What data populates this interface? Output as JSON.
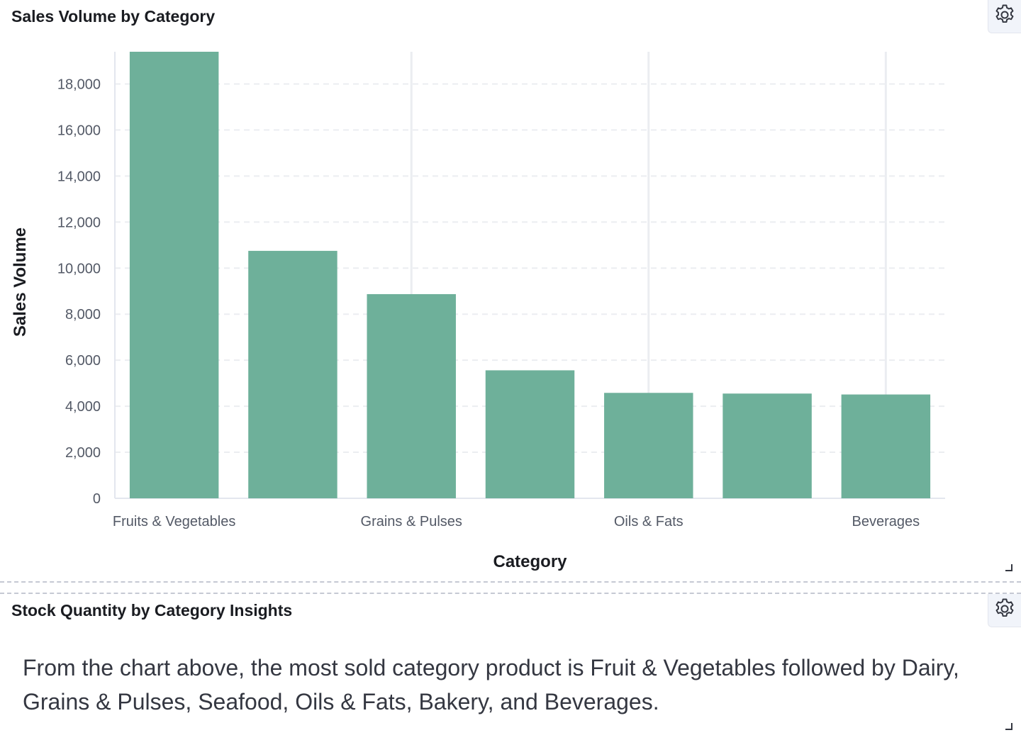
{
  "chart_panel": {
    "title": "Sales Volume by Category",
    "settings_icon": "gear-icon"
  },
  "text_panel": {
    "title": "Stock Quantity by Category Insights",
    "settings_icon": "gear-icon",
    "body": "From the chart above, the most sold category product is Fruit & Vegetables followed by Dairy, Grains & Pulses, Seafood, Oils & Fats, Bakery, and Beverages."
  },
  "chart_data": {
    "type": "bar",
    "title": "Sales Volume by Category",
    "xlabel": "Category",
    "ylabel": "Sales Volume",
    "categories": [
      "Fruits & Vegetables",
      "Dairy",
      "Grains & Pulses",
      "Seafood",
      "Oils & Fats",
      "Bakery",
      "Beverages"
    ],
    "visible_category_labels": [
      "Fruits & Vegetables",
      "Grains & Pulses",
      "Oils & Fats",
      "Beverages"
    ],
    "values": [
      19400,
      10750,
      8870,
      5560,
      4580,
      4550,
      4510
    ],
    "ylim": [
      0,
      19400
    ],
    "yticks": [
      0,
      2000,
      4000,
      6000,
      8000,
      10000,
      12000,
      14000,
      16000,
      18000
    ],
    "ytick_labels": [
      "0",
      "2,000",
      "4,000",
      "6,000",
      "8,000",
      "10,000",
      "12,000",
      "14,000",
      "16,000",
      "18,000"
    ],
    "bar_color": "#6eb09a",
    "grid_color": "#ebedf1",
    "grid": true
  }
}
